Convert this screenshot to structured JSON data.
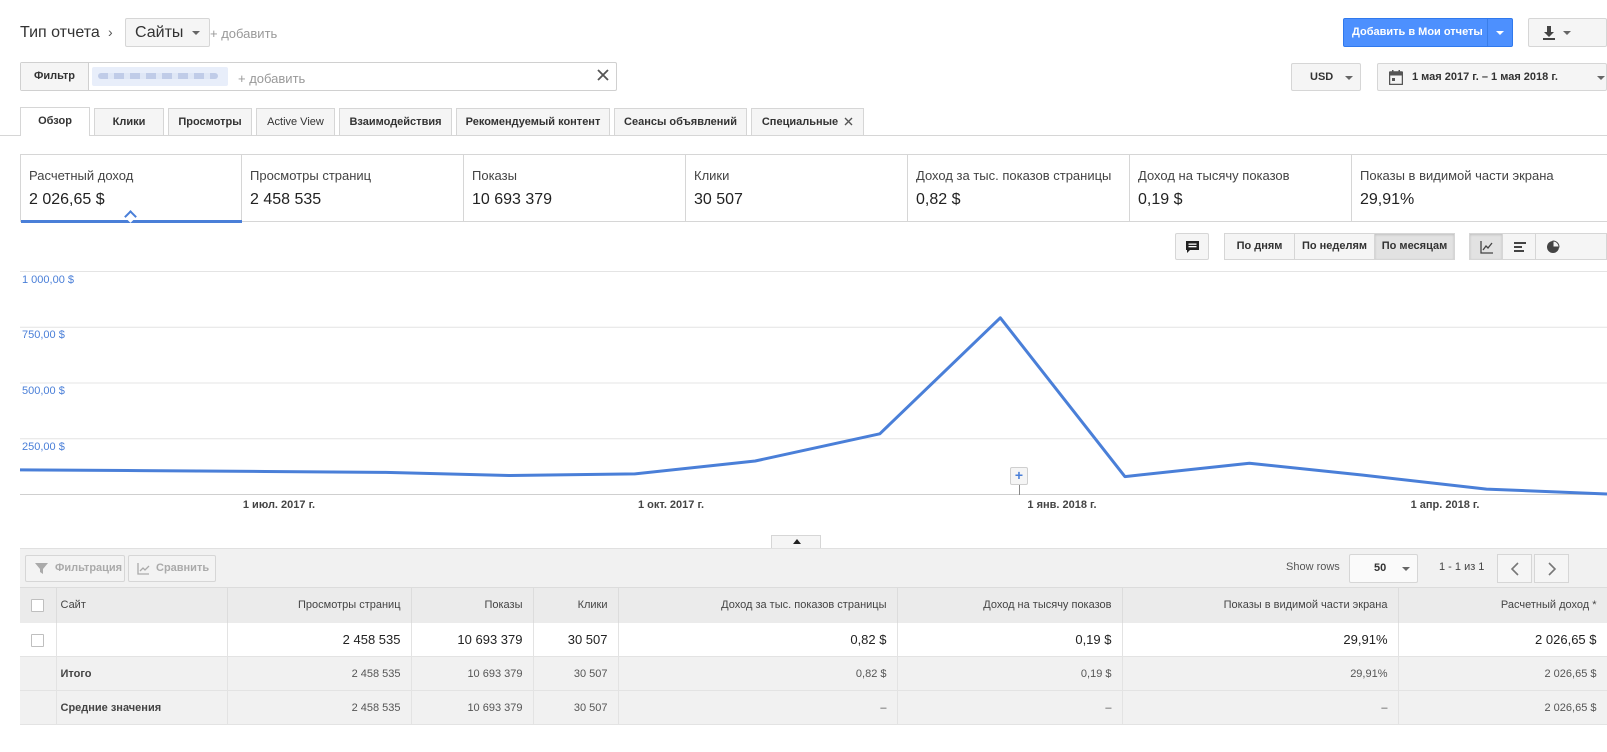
{
  "header": {
    "report_type_label": "Тип отчета",
    "report_type_value": "Сайты",
    "add_link": "+ добавить",
    "add_to_reports": "Добавить в Мои отчеты"
  },
  "filter": {
    "label": "Фильтр",
    "add_link": "+ добавить",
    "currency": "USD",
    "date_range": "1 мая 2017 г. – 1 мая 2018 г."
  },
  "tabs": [
    {
      "label": "Обзор"
    },
    {
      "label": "Клики"
    },
    {
      "label": "Просмотры"
    },
    {
      "label": "Active View"
    },
    {
      "label": "Взаимодействия"
    },
    {
      "label": "Рекомендуемый контент"
    },
    {
      "label": "Сеансы объявлений"
    },
    {
      "label": "Специальные"
    }
  ],
  "metrics": [
    {
      "label": "Расчетный доход",
      "value": "2 026,65 $"
    },
    {
      "label": "Просмотры страниц",
      "value": "2 458 535"
    },
    {
      "label": "Показы",
      "value": "10 693 379"
    },
    {
      "label": "Клики",
      "value": "30 507"
    },
    {
      "label": "Доход за тыс. показов страницы",
      "value": "0,82 $"
    },
    {
      "label": "Доход на тысячу показов",
      "value": "0,19 $"
    },
    {
      "label": "Показы в видимой части экрана",
      "value": "29,91%"
    }
  ],
  "granularity": {
    "by_day": "По дням",
    "by_week": "По неделям",
    "by_month": "По месяцам"
  },
  "chart_data": {
    "type": "line",
    "title": "",
    "xlabel": "",
    "ylabel": "",
    "ylim": [
      0,
      1000
    ],
    "y_ticks": [
      "250,00 $",
      "500,00 $",
      "750,00 $",
      "1 000,00 $"
    ],
    "x_ticks": [
      {
        "label": "1 июл. 2017 г.",
        "x": "2017-07-01"
      },
      {
        "label": "1 окт. 2017 г.",
        "x": "2017-10-01"
      },
      {
        "label": "1 янв. 2018 г.",
        "x": "2018-01-01"
      },
      {
        "label": "1 апр. 2018 г.",
        "x": "2018-04-01"
      }
    ],
    "x_range": [
      "2017-04-01",
      "2018-05-01"
    ],
    "grid": true,
    "legend": "none",
    "color": "#4a7fd8",
    "x": [
      "2017-04-01",
      "2017-05-01",
      "2017-06-01",
      "2017-07-01",
      "2017-08-01",
      "2017-09-01",
      "2017-10-01",
      "2017-11-01",
      "2017-12-01",
      "2018-01-01",
      "2018-02-01",
      "2018-03-01",
      "2018-04-01",
      "2018-05-01"
    ],
    "values": [
      108,
      105,
      101,
      97,
      83,
      90,
      148,
      270,
      790,
      78,
      138,
      85,
      22,
      0
    ]
  },
  "table": {
    "toolbar": {
      "filter_label": "Фильтрация",
      "compare_label": "Сравнить",
      "show_rows_label": "Show rows",
      "show_rows_value": "50",
      "pagination": "1 - 1 из 1"
    },
    "columns": [
      "Сайт",
      "Просмотры страниц",
      "Показы",
      "Клики",
      "Доход за тыс. показов страницы",
      "Доход на тысячу показов",
      "Показы в видимой части экрана",
      "Расчетный доход *"
    ],
    "row": {
      "site": "",
      "pageviews": "2 458 535",
      "impressions": "10 693 379",
      "clicks": "30 507",
      "page_rpm": "0,82 $",
      "impression_rpm": "0,19 $",
      "viewability": "29,91%",
      "revenue": "2 026,65 $"
    },
    "total": {
      "label": "Итого",
      "pageviews": "2 458 535",
      "impressions": "10 693 379",
      "clicks": "30 507",
      "page_rpm": "0,82 $",
      "impression_rpm": "0,19 $",
      "viewability": "29,91%",
      "revenue": "2 026,65 $"
    },
    "average": {
      "label": "Средние значения",
      "pageviews": "2 458 535",
      "impressions": "10 693 379",
      "clicks": "30 507",
      "page_rpm": "–",
      "impression_rpm": "–",
      "viewability": "–",
      "revenue": "2 026,65 $"
    }
  }
}
